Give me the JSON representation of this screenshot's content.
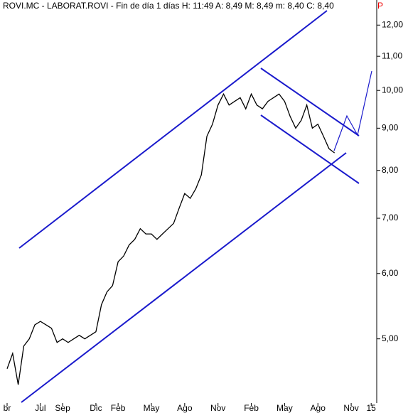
{
  "chart_data": {
    "type": "line",
    "title": "ROVI.MC - LABORAT.ROVI - Fin de día 1 días H: 11:49 A: 8,49 M: 8,49 m: 8,40 C: 8,40",
    "flag": "P",
    "log_scale": true,
    "color": "#000000",
    "x": [
      0,
      0.5,
      1,
      1.5,
      2,
      2.5,
      3,
      3.5,
      4,
      4.5,
      5,
      5.5,
      6,
      6.5,
      7,
      7.5,
      8,
      8.5,
      9,
      9.5,
      10,
      10.5,
      11,
      11.5,
      12,
      12.5,
      13,
      13.5,
      14,
      14.5,
      15,
      15.5,
      16,
      16.5,
      17,
      17.5,
      18,
      18.5,
      19,
      19.5,
      20,
      20.5,
      21,
      21.5,
      22,
      22.5,
      23,
      23.5,
      24,
      24.5,
      25,
      25.5,
      26,
      26.5,
      27,
      27.5,
      28,
      28.5,
      29,
      29.5
    ],
    "values": [
      4.6,
      4.8,
      4.4,
      4.9,
      5.0,
      5.2,
      5.25,
      5.2,
      5.15,
      4.95,
      5.0,
      4.95,
      5.0,
      5.05,
      5.0,
      5.05,
      5.1,
      5.5,
      5.7,
      5.8,
      6.2,
      6.3,
      6.5,
      6.6,
      6.8,
      6.7,
      6.7,
      6.6,
      6.7,
      6.8,
      6.9,
      7.2,
      7.5,
      7.4,
      7.6,
      7.9,
      8.8,
      9.1,
      9.6,
      9.9,
      9.6,
      9.7,
      9.8,
      9.5,
      9.9,
      9.6,
      9.5,
      9.7,
      9.8,
      9.9,
      9.7,
      9.3,
      9.0,
      9.2,
      9.6,
      9.0,
      9.1,
      8.8,
      8.5,
      8.4
    ],
    "xlim": [
      -0.64,
      33.3
    ],
    "xticks": [
      {
        "value": 0,
        "label": "br"
      },
      {
        "value": 3,
        "label": "Jul"
      },
      {
        "value": 5,
        "label": "Sep"
      },
      {
        "value": 8,
        "label": "Dic"
      },
      {
        "value": 10,
        "label": "Feb"
      },
      {
        "value": 13,
        "label": "May"
      },
      {
        "value": 16,
        "label": "Ago"
      },
      {
        "value": 19,
        "label": "Nov"
      },
      {
        "value": 22,
        "label": "Feb"
      },
      {
        "value": 25,
        "label": "May"
      },
      {
        "value": 28,
        "label": "Ago"
      },
      {
        "value": 31,
        "label": "Nov"
      },
      {
        "value": 32.8,
        "label": "15"
      }
    ],
    "ylim": [
      4.18,
      12.87
    ],
    "yticks": [
      {
        "value": 12,
        "label": "12,00"
      },
      {
        "value": 11,
        "label": "11,00"
      },
      {
        "value": 10,
        "label": "10,00"
      },
      {
        "value": 9,
        "label": "9,00"
      },
      {
        "value": 8,
        "label": "8,00"
      },
      {
        "value": 7,
        "label": "7,00"
      },
      {
        "value": 6,
        "label": "6,00"
      },
      {
        "value": 5,
        "label": "5,00"
      }
    ]
  }
}
